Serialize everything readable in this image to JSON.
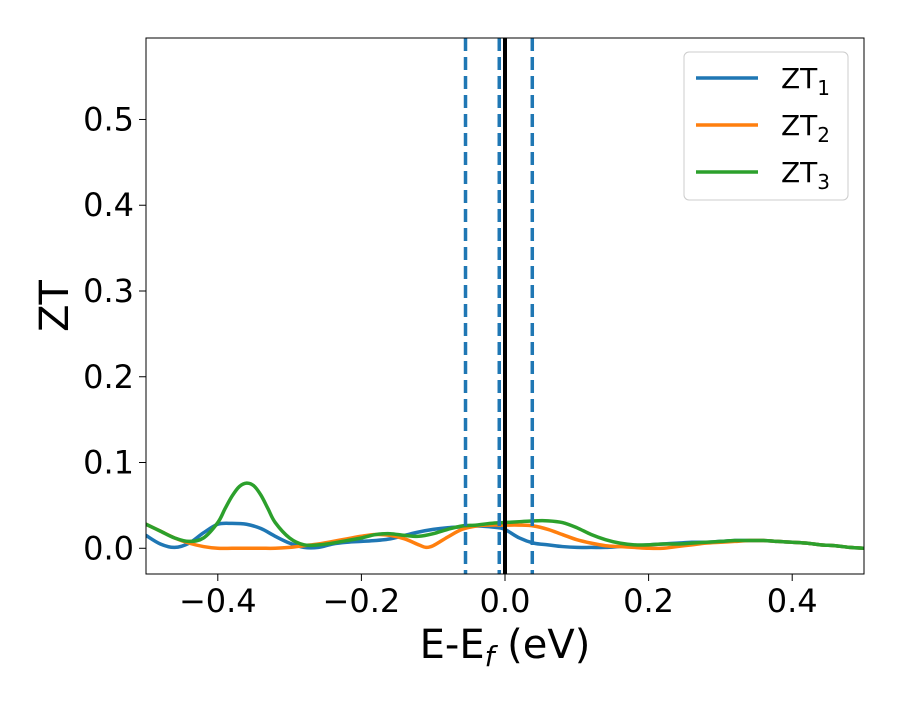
{
  "chart_data": {
    "type": "line",
    "xlabel": {
      "main": "E-E",
      "sub": "f",
      "tail": " (eV)"
    },
    "ylabel": "ZT",
    "xlim": [
      -0.5,
      0.5
    ],
    "ylim": [
      -0.03,
      0.595
    ],
    "xticks": [
      -0.4,
      -0.2,
      0.0,
      0.2,
      0.4
    ],
    "xtick_labels": [
      "−0.4",
      "−0.2",
      "0.0",
      "0.2",
      "0.4"
    ],
    "yticks": [
      0.0,
      0.1,
      0.2,
      0.3,
      0.4,
      0.5
    ],
    "ytick_labels": [
      "0.0",
      "0.1",
      "0.2",
      "0.3",
      "0.4",
      "0.5"
    ],
    "grid": false,
    "legend_position": "top-right",
    "vertical_lines": [
      {
        "x": -0.055,
        "style": "dashed",
        "color": "#1f77b4"
      },
      {
        "x": -0.008,
        "style": "dashed",
        "color": "#1f77b4"
      },
      {
        "x": 0.038,
        "style": "dashed",
        "color": "#1f77b4"
      },
      {
        "x": 0.0,
        "style": "solid",
        "color": "#000000"
      }
    ],
    "series": [
      {
        "name": "ZT",
        "name_sub": "1",
        "color": "#1f77b4",
        "x": [
          -0.5,
          -0.48,
          -0.46,
          -0.44,
          -0.42,
          -0.4,
          -0.38,
          -0.36,
          -0.34,
          -0.32,
          -0.3,
          -0.28,
          -0.26,
          -0.24,
          -0.22,
          -0.2,
          -0.18,
          -0.16,
          -0.14,
          -0.12,
          -0.1,
          -0.08,
          -0.06,
          -0.04,
          -0.02,
          -0.01,
          0.0,
          0.02,
          0.04,
          0.06,
          0.08,
          0.1,
          0.12,
          0.14,
          0.16,
          0.18,
          0.2,
          0.22,
          0.24,
          0.26,
          0.28,
          0.3,
          0.32,
          0.34,
          0.36,
          0.38,
          0.4,
          0.42,
          0.44,
          0.46,
          0.48,
          0.5
        ],
        "y": [
          0.015,
          0.005,
          0.001,
          0.006,
          0.018,
          0.028,
          0.029,
          0.028,
          0.023,
          0.014,
          0.006,
          0.001,
          0.001,
          0.005,
          0.007,
          0.008,
          0.009,
          0.011,
          0.015,
          0.019,
          0.022,
          0.024,
          0.025,
          0.026,
          0.025,
          0.024,
          0.022,
          0.012,
          0.006,
          0.004,
          0.002,
          0.001,
          0.001,
          0.001,
          0.002,
          0.003,
          0.004,
          0.005,
          0.006,
          0.007,
          0.007,
          0.008,
          0.009,
          0.009,
          0.009,
          0.008,
          0.007,
          0.006,
          0.004,
          0.003,
          0.001,
          0.0
        ]
      },
      {
        "name": "ZT",
        "name_sub": "2",
        "color": "#ff7f0e",
        "x": [
          -0.5,
          -0.48,
          -0.46,
          -0.44,
          -0.42,
          -0.4,
          -0.38,
          -0.36,
          -0.34,
          -0.32,
          -0.3,
          -0.28,
          -0.26,
          -0.24,
          -0.22,
          -0.2,
          -0.18,
          -0.16,
          -0.14,
          -0.12,
          -0.11,
          -0.1,
          -0.08,
          -0.06,
          -0.04,
          -0.02,
          0.0,
          0.02,
          0.04,
          0.06,
          0.08,
          0.1,
          0.12,
          0.14,
          0.16,
          0.18,
          0.2,
          0.22,
          0.24,
          0.26,
          0.28,
          0.3,
          0.32,
          0.34,
          0.36,
          0.38,
          0.4,
          0.42,
          0.44,
          0.46,
          0.48,
          0.5
        ],
        "y": [
          0.028,
          0.02,
          0.012,
          0.006,
          0.002,
          0.0,
          0.0,
          0.0,
          0.0,
          0.0,
          0.001,
          0.003,
          0.005,
          0.008,
          0.011,
          0.014,
          0.016,
          0.015,
          0.011,
          0.004,
          0.001,
          0.003,
          0.013,
          0.022,
          0.026,
          0.027,
          0.027,
          0.027,
          0.026,
          0.022,
          0.016,
          0.01,
          0.006,
          0.003,
          0.002,
          0.001,
          0.0,
          0.0,
          0.002,
          0.004,
          0.006,
          0.007,
          0.008,
          0.009,
          0.009,
          0.008,
          0.007,
          0.006,
          0.004,
          0.003,
          0.001,
          0.0
        ]
      },
      {
        "name": "ZT",
        "name_sub": "3",
        "color": "#2ca02c",
        "x": [
          -0.5,
          -0.48,
          -0.46,
          -0.44,
          -0.42,
          -0.4,
          -0.39,
          -0.38,
          -0.37,
          -0.36,
          -0.35,
          -0.34,
          -0.33,
          -0.32,
          -0.3,
          -0.28,
          -0.26,
          -0.24,
          -0.22,
          -0.2,
          -0.18,
          -0.16,
          -0.14,
          -0.12,
          -0.1,
          -0.08,
          -0.06,
          -0.04,
          -0.02,
          0.0,
          0.02,
          0.04,
          0.06,
          0.08,
          0.1,
          0.12,
          0.14,
          0.16,
          0.18,
          0.2,
          0.22,
          0.24,
          0.26,
          0.28,
          0.3,
          0.32,
          0.34,
          0.36,
          0.38,
          0.4,
          0.42,
          0.44,
          0.46,
          0.48,
          0.5
        ],
        "y": [
          0.028,
          0.02,
          0.012,
          0.008,
          0.012,
          0.03,
          0.046,
          0.061,
          0.072,
          0.076,
          0.073,
          0.062,
          0.046,
          0.03,
          0.012,
          0.004,
          0.004,
          0.006,
          0.009,
          0.012,
          0.016,
          0.017,
          0.015,
          0.014,
          0.017,
          0.022,
          0.026,
          0.027,
          0.029,
          0.03,
          0.031,
          0.032,
          0.032,
          0.03,
          0.024,
          0.016,
          0.01,
          0.006,
          0.004,
          0.004,
          0.005,
          0.005,
          0.006,
          0.007,
          0.008,
          0.009,
          0.009,
          0.009,
          0.008,
          0.007,
          0.006,
          0.004,
          0.003,
          0.001,
          0.0
        ]
      }
    ]
  }
}
